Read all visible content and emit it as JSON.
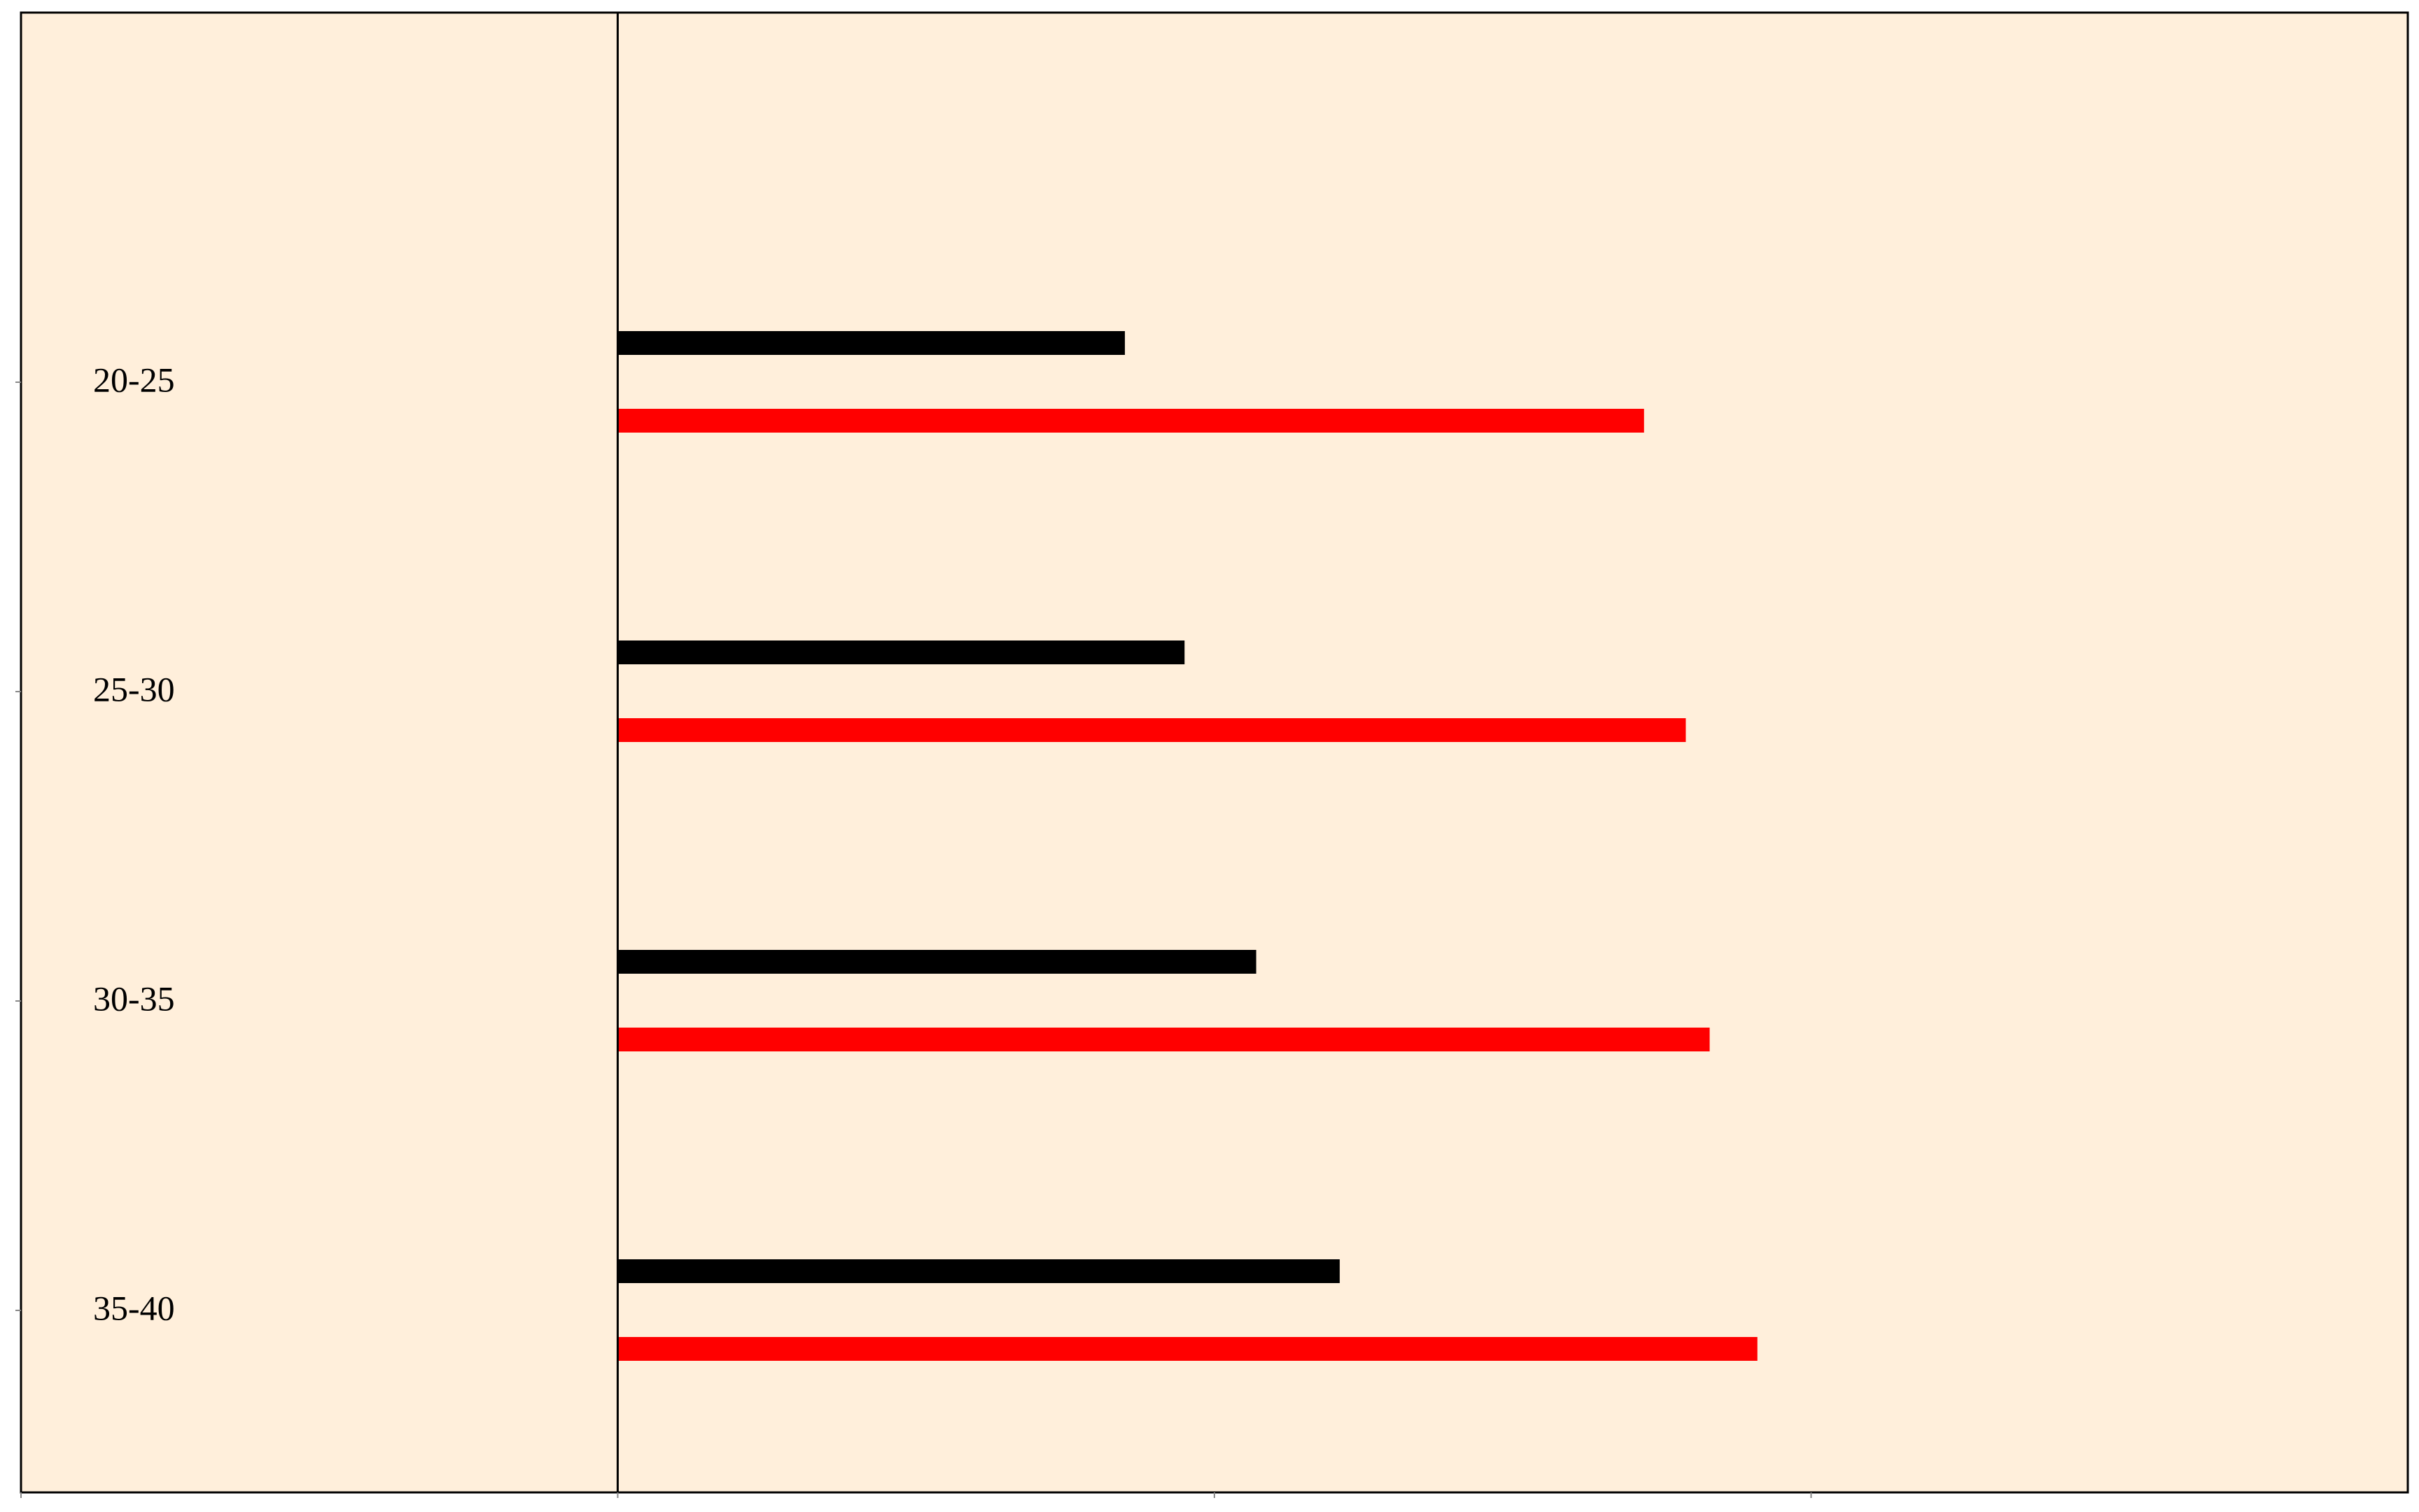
{
  "chart_data": {
    "type": "bar",
    "orientation": "horizontal",
    "title": "",
    "xlabel": "",
    "ylabel": "",
    "categories": [
      "20-25",
      "25-30",
      "30-35",
      "35-40"
    ],
    "series": [
      {
        "color": "#000000",
        "values": [
          0.85,
          0.95,
          1.07,
          1.21
        ]
      },
      {
        "color": "#ff0000",
        "values": [
          1.72,
          1.79,
          1.83,
          1.91
        ]
      }
    ],
    "xlim": [
      -1.0,
      3.0
    ],
    "x_ticks": [
      -1,
      0,
      1,
      2
    ],
    "x_tick_labels_visible": false,
    "grid": false,
    "legend": "none",
    "colors": {
      "background": "#ffefdb",
      "axis": "#000000"
    }
  }
}
